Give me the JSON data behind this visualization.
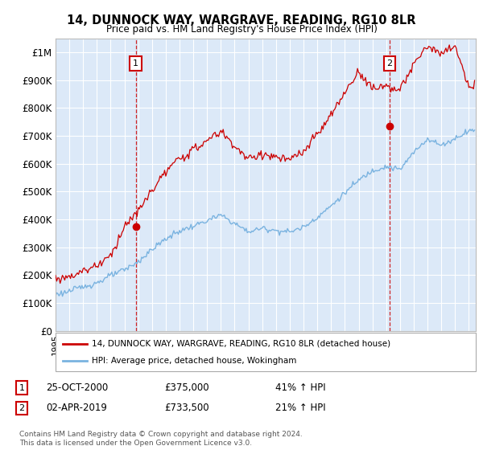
{
  "title": "14, DUNNOCK WAY, WARGRAVE, READING, RG10 8LR",
  "subtitle": "Price paid vs. HM Land Registry's House Price Index (HPI)",
  "legend_line1": "14, DUNNOCK WAY, WARGRAVE, READING, RG10 8LR (detached house)",
  "legend_line2": "HPI: Average price, detached house, Wokingham",
  "annotation1_label": "1",
  "annotation1_date": "25-OCT-2000",
  "annotation1_price": "£375,000",
  "annotation1_hpi": "41% ↑ HPI",
  "annotation1_year": 2000.82,
  "annotation1_value": 375000,
  "annotation2_label": "2",
  "annotation2_date": "02-APR-2019",
  "annotation2_price": "£733,500",
  "annotation2_hpi": "21% ↑ HPI",
  "annotation2_year": 2019.25,
  "annotation2_value": 733500,
  "ylabel_ticks": [
    0,
    100000,
    200000,
    300000,
    400000,
    500000,
    600000,
    700000,
    800000,
    900000,
    1000000
  ],
  "ylabel_labels": [
    "£0",
    "£100K",
    "£200K",
    "£300K",
    "£400K",
    "£500K",
    "£600K",
    "£700K",
    "£800K",
    "£900K",
    "£1M"
  ],
  "ylim": [
    0,
    1050000
  ],
  "xlim_start": 1995.0,
  "xlim_end": 2025.5,
  "background_color": "#ffffff",
  "plot_bg_color": "#dce9f8",
  "grid_color": "#ffffff",
  "line1_color": "#cc0000",
  "line2_color": "#7ab3e0",
  "marker_color": "#cc0000",
  "footnote": "Contains HM Land Registry data © Crown copyright and database right 2024.\nThis data is licensed under the Open Government Licence v3.0.",
  "hpi_years": [
    1995,
    1996,
    1997,
    1998,
    1999,
    2000,
    2001,
    2002,
    2003,
    2004,
    2005,
    2006,
    2007,
    2008,
    2009,
    2010,
    2011,
    2012,
    2013,
    2014,
    2015,
    2016,
    2017,
    2018,
    2019,
    2020,
    2021,
    2022,
    2023,
    2024,
    2025
  ],
  "hpi_values": [
    130000,
    142000,
    158000,
    172000,
    198000,
    218000,
    248000,
    292000,
    330000,
    358000,
    375000,
    395000,
    415000,
    385000,
    355000,
    368000,
    360000,
    355000,
    372000,
    408000,
    448000,
    495000,
    540000,
    575000,
    590000,
    578000,
    640000,
    690000,
    665000,
    690000,
    720000
  ],
  "price_years": [
    1995,
    1996,
    1997,
    1998,
    1999,
    2000,
    2001,
    2002,
    2003,
    2004,
    2005,
    2006,
    2007,
    2008,
    2009,
    2010,
    2011,
    2012,
    2013,
    2014,
    2015,
    2016,
    2017,
    2018,
    2019,
    2020,
    2021,
    2022,
    2023,
    2024,
    2025
  ],
  "price_values": [
    185000,
    195000,
    215000,
    235000,
    270000,
    375000,
    428000,
    505000,
    570000,
    618000,
    648000,
    682000,
    716000,
    664000,
    614000,
    636000,
    622000,
    613000,
    642000,
    705000,
    773000,
    855000,
    932000,
    870000,
    880000,
    862000,
    955000,
    1025000,
    990000,
    1025000,
    870000
  ]
}
